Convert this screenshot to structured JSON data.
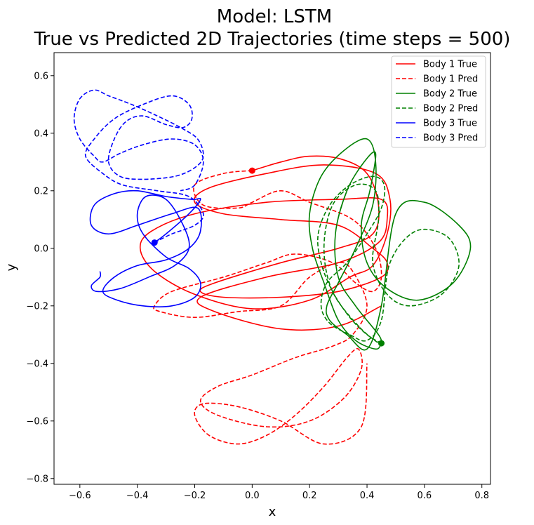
{
  "chart_data": {
    "type": "line",
    "title": [
      "Model: LSTM",
      "True vs Predicted 2D Trajectories (time steps = 500)"
    ],
    "xlabel": "x",
    "ylabel": "y",
    "xlim": [
      -0.69,
      0.83
    ],
    "ylim": [
      -0.82,
      0.68
    ],
    "xticks": [
      -0.6,
      -0.4,
      -0.2,
      0.0,
      0.2,
      0.4,
      0.6,
      0.8
    ],
    "xtick_labels": [
      "−0.6",
      "−0.4",
      "−0.2",
      "0.0",
      "0.2",
      "0.4",
      "0.6",
      "0.8"
    ],
    "yticks": [
      -0.8,
      -0.6,
      -0.4,
      -0.2,
      0.0,
      0.2,
      0.4,
      0.6
    ],
    "ytick_labels": [
      "−0.8",
      "−0.6",
      "−0.4",
      "−0.2",
      "0.0",
      "0.2",
      "0.4",
      "0.6"
    ],
    "grid": false,
    "legend_position": "top-right",
    "series": [
      {
        "name": "Body 1 True",
        "color": "#ff0000",
        "style": "solid",
        "x": [
          0.0,
          0.1,
          0.2,
          0.31,
          0.4,
          0.44,
          0.42,
          0.3,
          0.1,
          -0.13,
          -0.18,
          -0.1,
          0.1,
          0.3,
          0.45,
          0.47,
          0.42,
          0.3,
          0.1,
          -0.1,
          -0.2,
          -0.15,
          0.05,
          0.25,
          0.43,
          0.48,
          0.47,
          0.42,
          0.34,
          0.2,
          0.0,
          -0.2,
          -0.34,
          -0.39,
          -0.35,
          -0.2,
          0.05,
          0.3,
          0.45,
          0.47,
          0.44,
          0.3,
          0.05,
          -0.18,
          -0.13,
          0.1,
          0.3,
          0.45
        ],
        "y": [
          0.27,
          0.3,
          0.32,
          0.31,
          0.26,
          0.15,
          0.05,
          0.0,
          -0.05,
          -0.12,
          -0.15,
          -0.17,
          -0.17,
          -0.15,
          -0.1,
          -0.05,
          0.0,
          0.08,
          0.1,
          0.12,
          0.16,
          0.21,
          0.26,
          0.29,
          0.26,
          0.17,
          0.05,
          -0.06,
          -0.1,
          -0.18,
          -0.21,
          -0.16,
          -0.08,
          0.0,
          0.06,
          0.12,
          0.16,
          0.17,
          0.17,
          0.1,
          0.02,
          -0.05,
          -0.1,
          -0.17,
          -0.22,
          -0.28,
          -0.27,
          -0.2
        ]
      },
      {
        "name": "Body 1 Pred",
        "color": "#ff0000",
        "style": "dashed",
        "x": [
          0.0,
          -0.1,
          -0.2,
          -0.17,
          -0.05,
          0.0,
          0.1,
          0.2,
          0.35,
          0.43,
          0.45,
          0.42,
          0.36,
          0.28,
          0.15,
          0.05,
          -0.1,
          -0.28,
          -0.34,
          -0.32,
          -0.2,
          -0.05,
          0.1,
          0.2,
          0.3,
          0.35,
          0.4,
          0.35,
          0.28,
          0.15,
          0.0,
          -0.12,
          -0.18,
          -0.12,
          0.05,
          0.2,
          0.32,
          0.38,
          0.37,
          0.33,
          0.25,
          0.15,
          0.05,
          -0.05,
          -0.15,
          -0.2,
          -0.17,
          -0.05,
          0.1,
          0.25,
          0.38,
          0.4
        ],
        "y": [
          0.27,
          0.26,
          0.22,
          0.15,
          0.14,
          0.16,
          0.2,
          0.16,
          0.1,
          0.0,
          -0.1,
          -0.15,
          -0.12,
          -0.05,
          -0.02,
          -0.05,
          -0.1,
          -0.15,
          -0.2,
          -0.22,
          -0.24,
          -0.22,
          -0.2,
          -0.1,
          -0.05,
          -0.08,
          -0.2,
          -0.3,
          -0.34,
          -0.38,
          -0.44,
          -0.48,
          -0.53,
          -0.58,
          -0.62,
          -0.6,
          -0.52,
          -0.42,
          -0.35,
          -0.38,
          -0.48,
          -0.58,
          -0.65,
          -0.68,
          -0.65,
          -0.58,
          -0.54,
          -0.55,
          -0.6,
          -0.68,
          -0.62,
          -0.4
        ]
      },
      {
        "name": "Body 2 True",
        "color": "#008000",
        "style": "solid",
        "x": [
          0.45,
          0.43,
          0.36,
          0.3,
          0.25,
          0.21,
          0.2,
          0.24,
          0.32,
          0.4,
          0.43,
          0.42,
          0.36,
          0.3,
          0.26,
          0.27,
          0.33,
          0.4,
          0.45,
          0.5,
          0.6,
          0.72,
          0.76,
          0.7,
          0.58,
          0.47,
          0.4,
          0.38,
          0.41,
          0.43,
          0.39,
          0.33,
          0.29,
          0.3,
          0.36,
          0.44,
          0.45
        ],
        "y": [
          -0.33,
          -0.35,
          -0.32,
          -0.25,
          -0.12,
          0.0,
          0.12,
          0.25,
          0.34,
          0.38,
          0.3,
          0.15,
          0.0,
          -0.12,
          -0.2,
          -0.25,
          -0.3,
          -0.35,
          -0.2,
          0.12,
          0.16,
          0.08,
          0.0,
          -0.12,
          -0.18,
          -0.14,
          -0.05,
          0.08,
          0.2,
          0.33,
          0.3,
          0.2,
          0.05,
          -0.1,
          -0.2,
          -0.3,
          -0.33
        ]
      },
      {
        "name": "Body 2 Pred",
        "color": "#008000",
        "style": "dashed",
        "x": [
          0.45,
          0.4,
          0.34,
          0.28,
          0.24,
          0.23,
          0.27,
          0.34,
          0.42,
          0.46,
          0.45,
          0.4,
          0.33,
          0.26,
          0.24,
          0.27,
          0.34,
          0.4,
          0.45,
          0.48,
          0.57,
          0.68,
          0.72,
          0.66,
          0.55,
          0.47,
          0.42,
          0.44,
          0.43,
          0.36,
          0.28,
          0.25,
          0.28,
          0.37,
          0.44
        ],
        "y": [
          -0.33,
          -0.3,
          -0.24,
          -0.15,
          -0.05,
          0.05,
          0.15,
          0.22,
          0.25,
          0.22,
          0.14,
          0.05,
          -0.05,
          -0.12,
          -0.2,
          -0.26,
          -0.3,
          -0.32,
          -0.25,
          -0.05,
          0.06,
          0.04,
          -0.06,
          -0.16,
          -0.2,
          -0.16,
          -0.05,
          0.1,
          0.2,
          0.22,
          0.15,
          0.0,
          -0.15,
          -0.27,
          -0.33
        ]
      },
      {
        "name": "Body 3 True",
        "color": "#0000ff",
        "style": "solid",
        "x": [
          -0.34,
          -0.3,
          -0.22,
          -0.18,
          -0.21,
          -0.3,
          -0.4,
          -0.48,
          -0.55,
          -0.56,
          -0.5,
          -0.4,
          -0.28,
          -0.19,
          -0.18,
          -0.22,
          -0.3,
          -0.4,
          -0.48,
          -0.52,
          -0.47,
          -0.38,
          -0.28,
          -0.2,
          -0.18,
          -0.22,
          -0.3,
          -0.38,
          -0.4,
          -0.37,
          -0.3,
          -0.24,
          -0.22,
          -0.27,
          -0.36,
          -0.46,
          -0.54,
          -0.56,
          -0.53,
          -0.53
        ],
        "y": [
          0.02,
          0.05,
          0.12,
          0.17,
          0.17,
          0.18,
          0.2,
          0.19,
          0.15,
          0.08,
          0.05,
          0.08,
          0.12,
          0.14,
          0.06,
          0.0,
          -0.04,
          -0.06,
          -0.1,
          -0.15,
          -0.18,
          -0.2,
          -0.2,
          -0.17,
          -0.12,
          -0.07,
          -0.03,
          0.05,
          0.12,
          0.18,
          0.17,
          0.08,
          0.0,
          -0.06,
          -0.1,
          -0.14,
          -0.15,
          -0.13,
          -0.1,
          -0.08
        ]
      },
      {
        "name": "Body 3 Pred",
        "color": "#0000ff",
        "style": "dashed",
        "x": [
          -0.34,
          -0.28,
          -0.2,
          -0.17,
          -0.22,
          -0.33,
          -0.45,
          -0.52,
          -0.58,
          -0.55,
          -0.48,
          -0.38,
          -0.28,
          -0.22,
          -0.21,
          -0.24,
          -0.3,
          -0.38,
          -0.44,
          -0.48,
          -0.5,
          -0.46,
          -0.38,
          -0.27,
          -0.2,
          -0.17,
          -0.19,
          -0.25,
          -0.33,
          -0.42,
          -0.5,
          -0.55,
          -0.6,
          -0.62,
          -0.6,
          -0.55,
          -0.52,
          -0.46,
          -0.38,
          -0.28,
          -0.2,
          -0.17,
          -0.2,
          -0.25
        ],
        "y": [
          0.02,
          0.05,
          0.08,
          0.12,
          0.18,
          0.2,
          0.22,
          0.26,
          0.32,
          0.38,
          0.45,
          0.5,
          0.53,
          0.5,
          0.45,
          0.42,
          0.43,
          0.46,
          0.44,
          0.38,
          0.3,
          0.25,
          0.24,
          0.25,
          0.28,
          0.32,
          0.38,
          0.42,
          0.46,
          0.5,
          0.53,
          0.55,
          0.52,
          0.45,
          0.38,
          0.32,
          0.3,
          0.33,
          0.36,
          0.38,
          0.36,
          0.3,
          0.22,
          0.2
        ]
      }
    ],
    "markers": [
      {
        "series": "Body 1 True",
        "x": 0.0,
        "y": 0.27,
        "color": "#ff0000"
      },
      {
        "series": "Body 2 True",
        "x": 0.45,
        "y": -0.33,
        "color": "#008000"
      },
      {
        "series": "Body 3 True",
        "x": -0.34,
        "y": 0.02,
        "color": "#0000ff"
      }
    ]
  }
}
